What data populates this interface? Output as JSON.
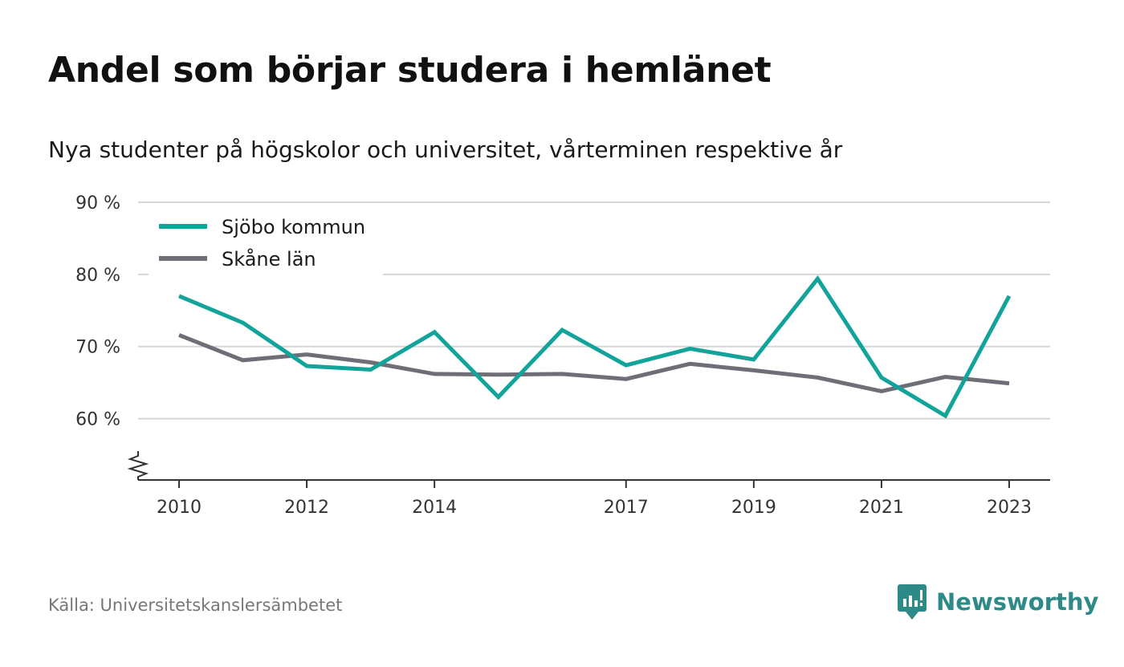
{
  "title": "Andel som börjar studera i hemlänet",
  "subtitle": "Nya studenter på högskolor och universitet, vårterminen respektive år",
  "source": "Källa: Universitetskanslersämbetet",
  "brand": "Newsworthy",
  "colors": {
    "sjobo": "#12a39a",
    "skane": "#6e6e76",
    "grid": "#d6d6d6",
    "axis": "#333333",
    "brand": "#2e8a86"
  },
  "chart_data": {
    "type": "line",
    "x": [
      2010,
      2011,
      2012,
      2013,
      2014,
      2015,
      2016,
      2017,
      2018,
      2019,
      2020,
      2021,
      2022,
      2023
    ],
    "x_ticks": [
      "2010",
      "2012",
      "2014",
      "2017",
      "2019",
      "2021",
      "2023"
    ],
    "x_tick_values": [
      2010,
      2012,
      2014,
      2017,
      2019,
      2021,
      2023
    ],
    "y_ticks": [
      "90 %",
      "80 %",
      "70 %",
      "60 %"
    ],
    "y_tick_values": [
      90,
      80,
      70,
      60
    ],
    "ylim": [
      51.5,
      90
    ],
    "axis_break": true,
    "grid": true,
    "legend_position": "top-left",
    "series": [
      {
        "name": "Sjöbo kommun",
        "color_key": "sjobo",
        "values": [
          77.0,
          73.3,
          67.3,
          66.8,
          72.0,
          63.0,
          72.3,
          67.4,
          69.7,
          68.2,
          79.4,
          65.7,
          60.4,
          77.0
        ]
      },
      {
        "name": "Skåne län",
        "color_key": "skane",
        "values": [
          71.6,
          68.1,
          68.9,
          67.8,
          66.2,
          66.1,
          66.2,
          65.5,
          67.6,
          66.7,
          65.7,
          63.8,
          65.8,
          64.9
        ]
      }
    ]
  }
}
